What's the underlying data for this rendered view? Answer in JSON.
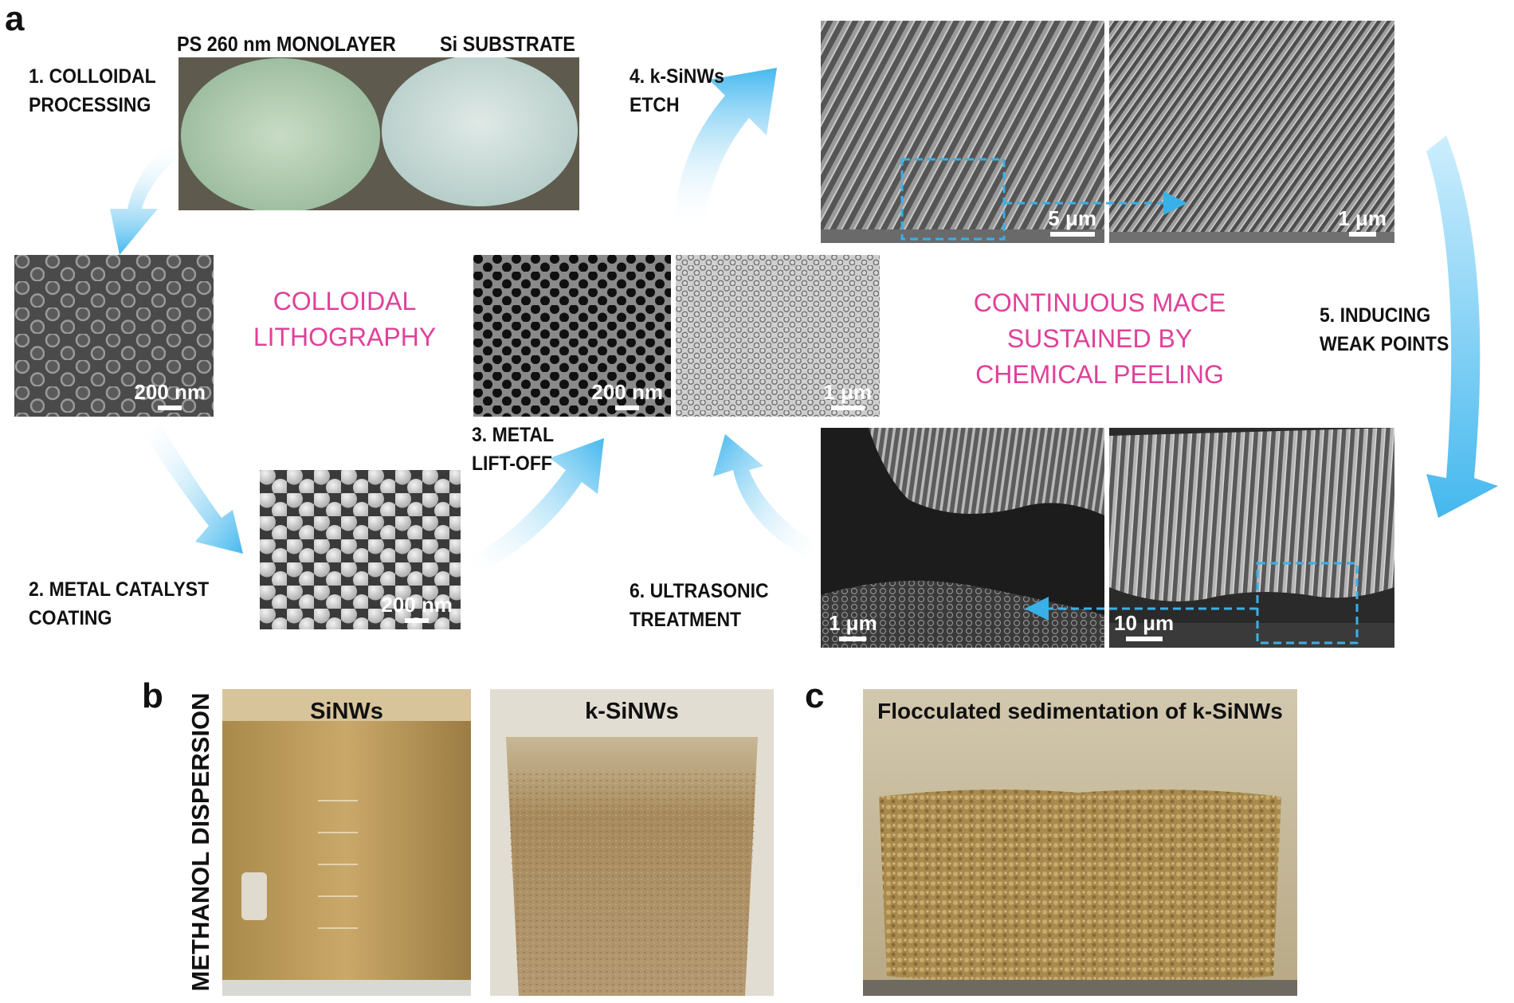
{
  "panel_a": {
    "letter": "a",
    "wafer_labels": {
      "left": "PS 260 nm MONOLAYER",
      "right": "Si SUBSTRATE"
    },
    "steps": {
      "s1": "1. COLLOIDAL\nPROCESSING",
      "s2": "2. METAL CATALYST\nCOATING",
      "s3": "3. METAL\nLIFT-OFF",
      "s4": "4. k-SiNWs\nETCH",
      "s5": "5. INDUCING\nWEAK POINTS",
      "s6": "6. ULTRASONIC\nTREATMENT"
    },
    "section_titles": {
      "colloidal": "COLLOIDAL\nLITHOGRAPHY",
      "mace": "CONTINUOUS MACE\nSUSTAINED BY\nCHEMICAL PEELING"
    },
    "scale_bars": {
      "ps_monolayer": "200 nm",
      "metal_coating": "200 nm",
      "liftoff_zoom": "200 nm",
      "liftoff_wide": "1 μm",
      "etch_wide": "5 μm",
      "etch_zoom": "1 μm",
      "ultrasonic_zoom": "1 μm",
      "ultrasonic_wide": "10 μm"
    }
  },
  "panel_b": {
    "letter": "b",
    "side_label": "METHANOL DISPERSION",
    "photos": [
      "SiNWs",
      "k-SiNWs"
    ]
  },
  "panel_c": {
    "letter": "c",
    "photo_label": "Flocculated sedimentation of k-SiNWs"
  },
  "colors": {
    "accent_pink": "#e0409a",
    "arrow_blue": "#45b8ee",
    "dashed_blue": "#3ab0e8"
  }
}
